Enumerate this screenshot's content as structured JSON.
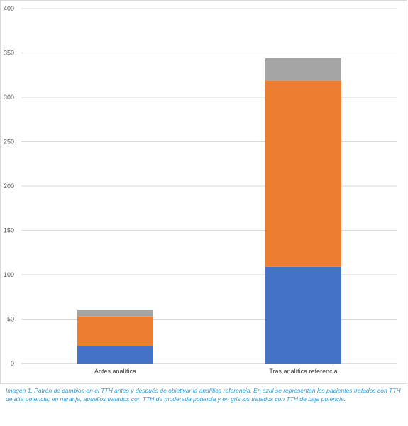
{
  "chart_data": {
    "type": "bar",
    "stacked": true,
    "categories": [
      "Antes analítica",
      "Tras analítica referencia"
    ],
    "series": [
      {
        "name": "TTH de alta potencia",
        "color": "#4472c4",
        "values": [
          20,
          109
        ]
      },
      {
        "name": "TTH de moderada potencia",
        "color": "#ed7d31",
        "values": [
          33,
          210
        ]
      },
      {
        "name": "TTH de baja potencia",
        "color": "#a5a5a5",
        "values": [
          7,
          25
        ]
      }
    ],
    "ylim": [
      0,
      400
    ],
    "yticks": [
      0,
      50,
      100,
      150,
      200,
      250,
      300,
      350,
      400
    ],
    "grid": true,
    "legend": "none",
    "title": "",
    "xlabel": "",
    "ylabel": ""
  },
  "caption": "Imagen 1. Patrón de cambios en el TTH antes y después de objetivar la analítica referencia. En azul se representan los pacientes tratados con TTH de alta potencia; en naranja, aquellos tratados con TTH de moderada potencia y en gris los tratados con TTH de baja potencia."
}
